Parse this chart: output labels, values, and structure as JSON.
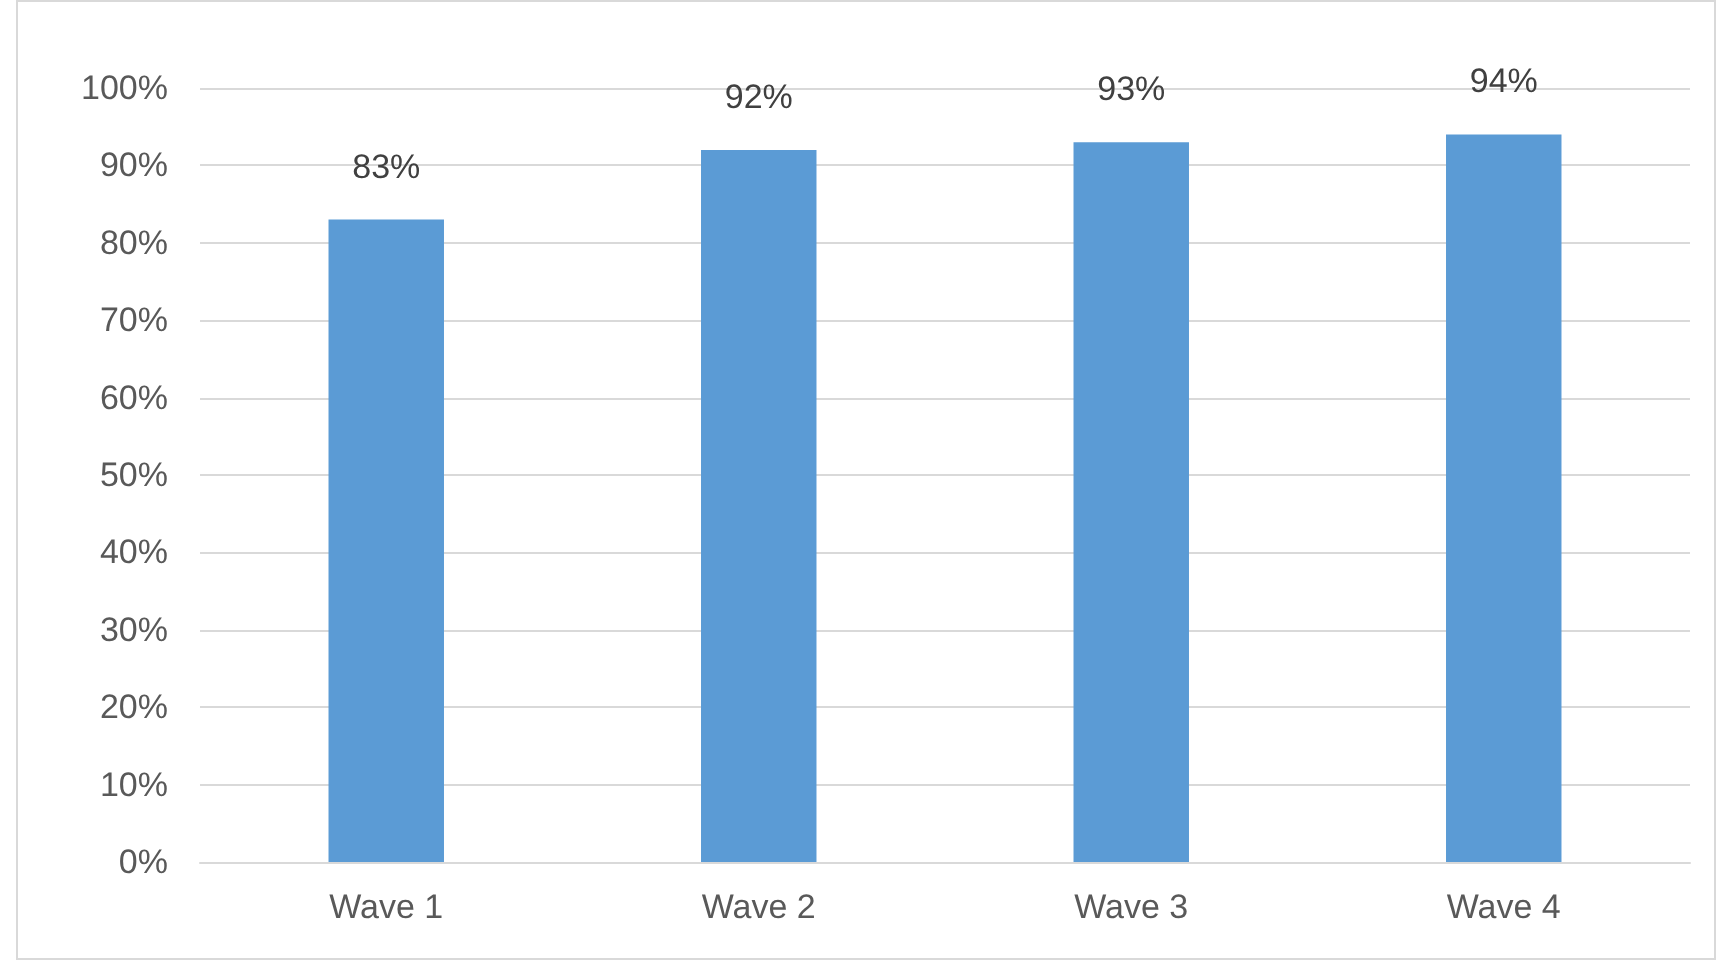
{
  "chart_data": {
    "type": "bar",
    "categories": [
      "Wave 1",
      "Wave 2",
      "Wave 3",
      "Wave 4"
    ],
    "values": [
      83,
      92,
      93,
      94
    ],
    "value_labels": [
      "83%",
      "92%",
      "93%",
      "94%"
    ],
    "color": "#5b9bd5",
    "ylim": [
      0,
      100
    ],
    "yticks": [
      {
        "value": 0,
        "label": "0%"
      },
      {
        "value": 10,
        "label": "10%"
      },
      {
        "value": 20,
        "label": "20%"
      },
      {
        "value": 30,
        "label": "30%"
      },
      {
        "value": 40,
        "label": "40%"
      },
      {
        "value": 50,
        "label": "50%"
      },
      {
        "value": 60,
        "label": "60%"
      },
      {
        "value": 70,
        "label": "70%"
      },
      {
        "value": 80,
        "label": "80%"
      },
      {
        "value": 90,
        "label": "90%"
      },
      {
        "value": 100,
        "label": "100%"
      }
    ],
    "grid": true
  }
}
